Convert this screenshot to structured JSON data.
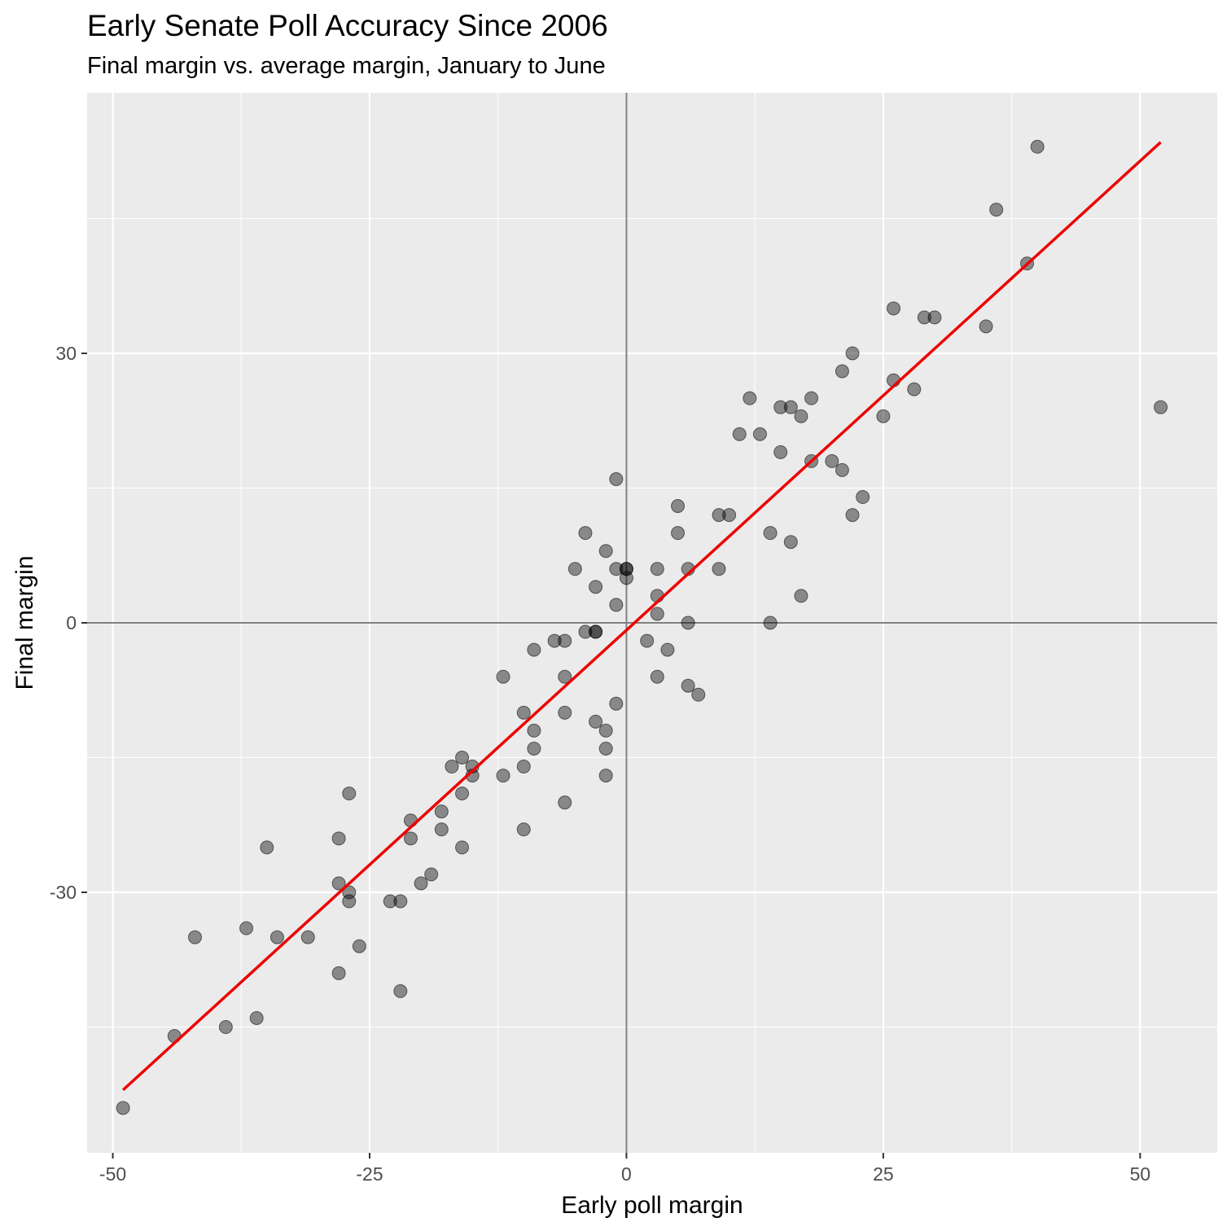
{
  "chart_data": {
    "type": "scatter",
    "title": "Early Senate Poll Accuracy Since 2006",
    "subtitle": "Final margin vs. average margin, January to June",
    "xlabel": "Early poll margin",
    "ylabel": "Final margin",
    "xlim": [
      -52.5,
      57.5
    ],
    "ylim": [
      -59,
      59
    ],
    "x_ticks": [
      -50,
      -25,
      0,
      25,
      50
    ],
    "x_tick_labels": [
      "-50",
      "-25",
      "0",
      "25",
      "50"
    ],
    "y_ticks": [
      -30,
      0,
      30
    ],
    "y_tick_labels": [
      "-30",
      "0",
      "30"
    ],
    "grid": true,
    "reference_lines": {
      "x": 0,
      "y": 0
    },
    "trend_line": {
      "x1": -49,
      "y1": -52,
      "x2": 52,
      "y2": 53.5,
      "color": "#ee0000"
    },
    "colors": {
      "panel_background": "#ebebeb",
      "points": "#000000",
      "reference_lines": "#808080",
      "trend": "#ee0000"
    },
    "points": [
      [
        -49,
        -54
      ],
      [
        -44,
        -46
      ],
      [
        -42,
        -35
      ],
      [
        -39,
        -45
      ],
      [
        -37,
        -34
      ],
      [
        -36,
        -44
      ],
      [
        -35,
        -25
      ],
      [
        -34,
        -35
      ],
      [
        -31,
        -35
      ],
      [
        -28,
        -24
      ],
      [
        -28,
        -29
      ],
      [
        -28,
        -39
      ],
      [
        -27,
        -19
      ],
      [
        -27,
        -30
      ],
      [
        -27,
        -31
      ],
      [
        -26,
        -36
      ],
      [
        -23,
        -31
      ],
      [
        -22,
        -31
      ],
      [
        -22,
        -41
      ],
      [
        -21,
        -22
      ],
      [
        -21,
        -24
      ],
      [
        -20,
        -29
      ],
      [
        -19,
        -28
      ],
      [
        -18,
        -21
      ],
      [
        -18,
        -23
      ],
      [
        -17,
        -16
      ],
      [
        -16,
        -15
      ],
      [
        -16,
        -19
      ],
      [
        -16,
        -25
      ],
      [
        -15,
        -16
      ],
      [
        -15,
        -17
      ],
      [
        -12,
        -6
      ],
      [
        -12,
        -17
      ],
      [
        -10,
        -10
      ],
      [
        -10,
        -16
      ],
      [
        -10,
        -23
      ],
      [
        -9,
        -3
      ],
      [
        -9,
        -12
      ],
      [
        -9,
        -14
      ],
      [
        -7,
        -2
      ],
      [
        -6,
        -2
      ],
      [
        -6,
        -6
      ],
      [
        -6,
        -10
      ],
      [
        -6,
        -20
      ],
      [
        -5,
        6
      ],
      [
        -4,
        10
      ],
      [
        -4,
        -1
      ],
      [
        -3,
        4
      ],
      [
        -3,
        -1
      ],
      [
        -3,
        -1
      ],
      [
        -3,
        -11
      ],
      [
        -2,
        8
      ],
      [
        -2,
        -12
      ],
      [
        -2,
        -14
      ],
      [
        -2,
        -17
      ],
      [
        -1,
        16
      ],
      [
        -1,
        6
      ],
      [
        -1,
        2
      ],
      [
        -1,
        -9
      ],
      [
        0,
        6
      ],
      [
        0,
        6
      ],
      [
        0,
        5
      ],
      [
        2,
        -2
      ],
      [
        3,
        6
      ],
      [
        3,
        3
      ],
      [
        3,
        1
      ],
      [
        3,
        -6
      ],
      [
        4,
        -3
      ],
      [
        5,
        13
      ],
      [
        5,
        10
      ],
      [
        6,
        6
      ],
      [
        6,
        0
      ],
      [
        6,
        -7
      ],
      [
        7,
        -8
      ],
      [
        9,
        12
      ],
      [
        9,
        6
      ],
      [
        10,
        12
      ],
      [
        11,
        21
      ],
      [
        12,
        25
      ],
      [
        13,
        21
      ],
      [
        14,
        10
      ],
      [
        14,
        0
      ],
      [
        15,
        24
      ],
      [
        15,
        19
      ],
      [
        16,
        24
      ],
      [
        16,
        9
      ],
      [
        17,
        23
      ],
      [
        17,
        3
      ],
      [
        18,
        25
      ],
      [
        18,
        18
      ],
      [
        20,
        18
      ],
      [
        21,
        28
      ],
      [
        21,
        17
      ],
      [
        22,
        30
      ],
      [
        22,
        12
      ],
      [
        23,
        14
      ],
      [
        25,
        23
      ],
      [
        26,
        35
      ],
      [
        26,
        27
      ],
      [
        28,
        26
      ],
      [
        29,
        34
      ],
      [
        30,
        34
      ],
      [
        35,
        33
      ],
      [
        36,
        46
      ],
      [
        39,
        40
      ],
      [
        40,
        53
      ],
      [
        52,
        24
      ]
    ]
  }
}
